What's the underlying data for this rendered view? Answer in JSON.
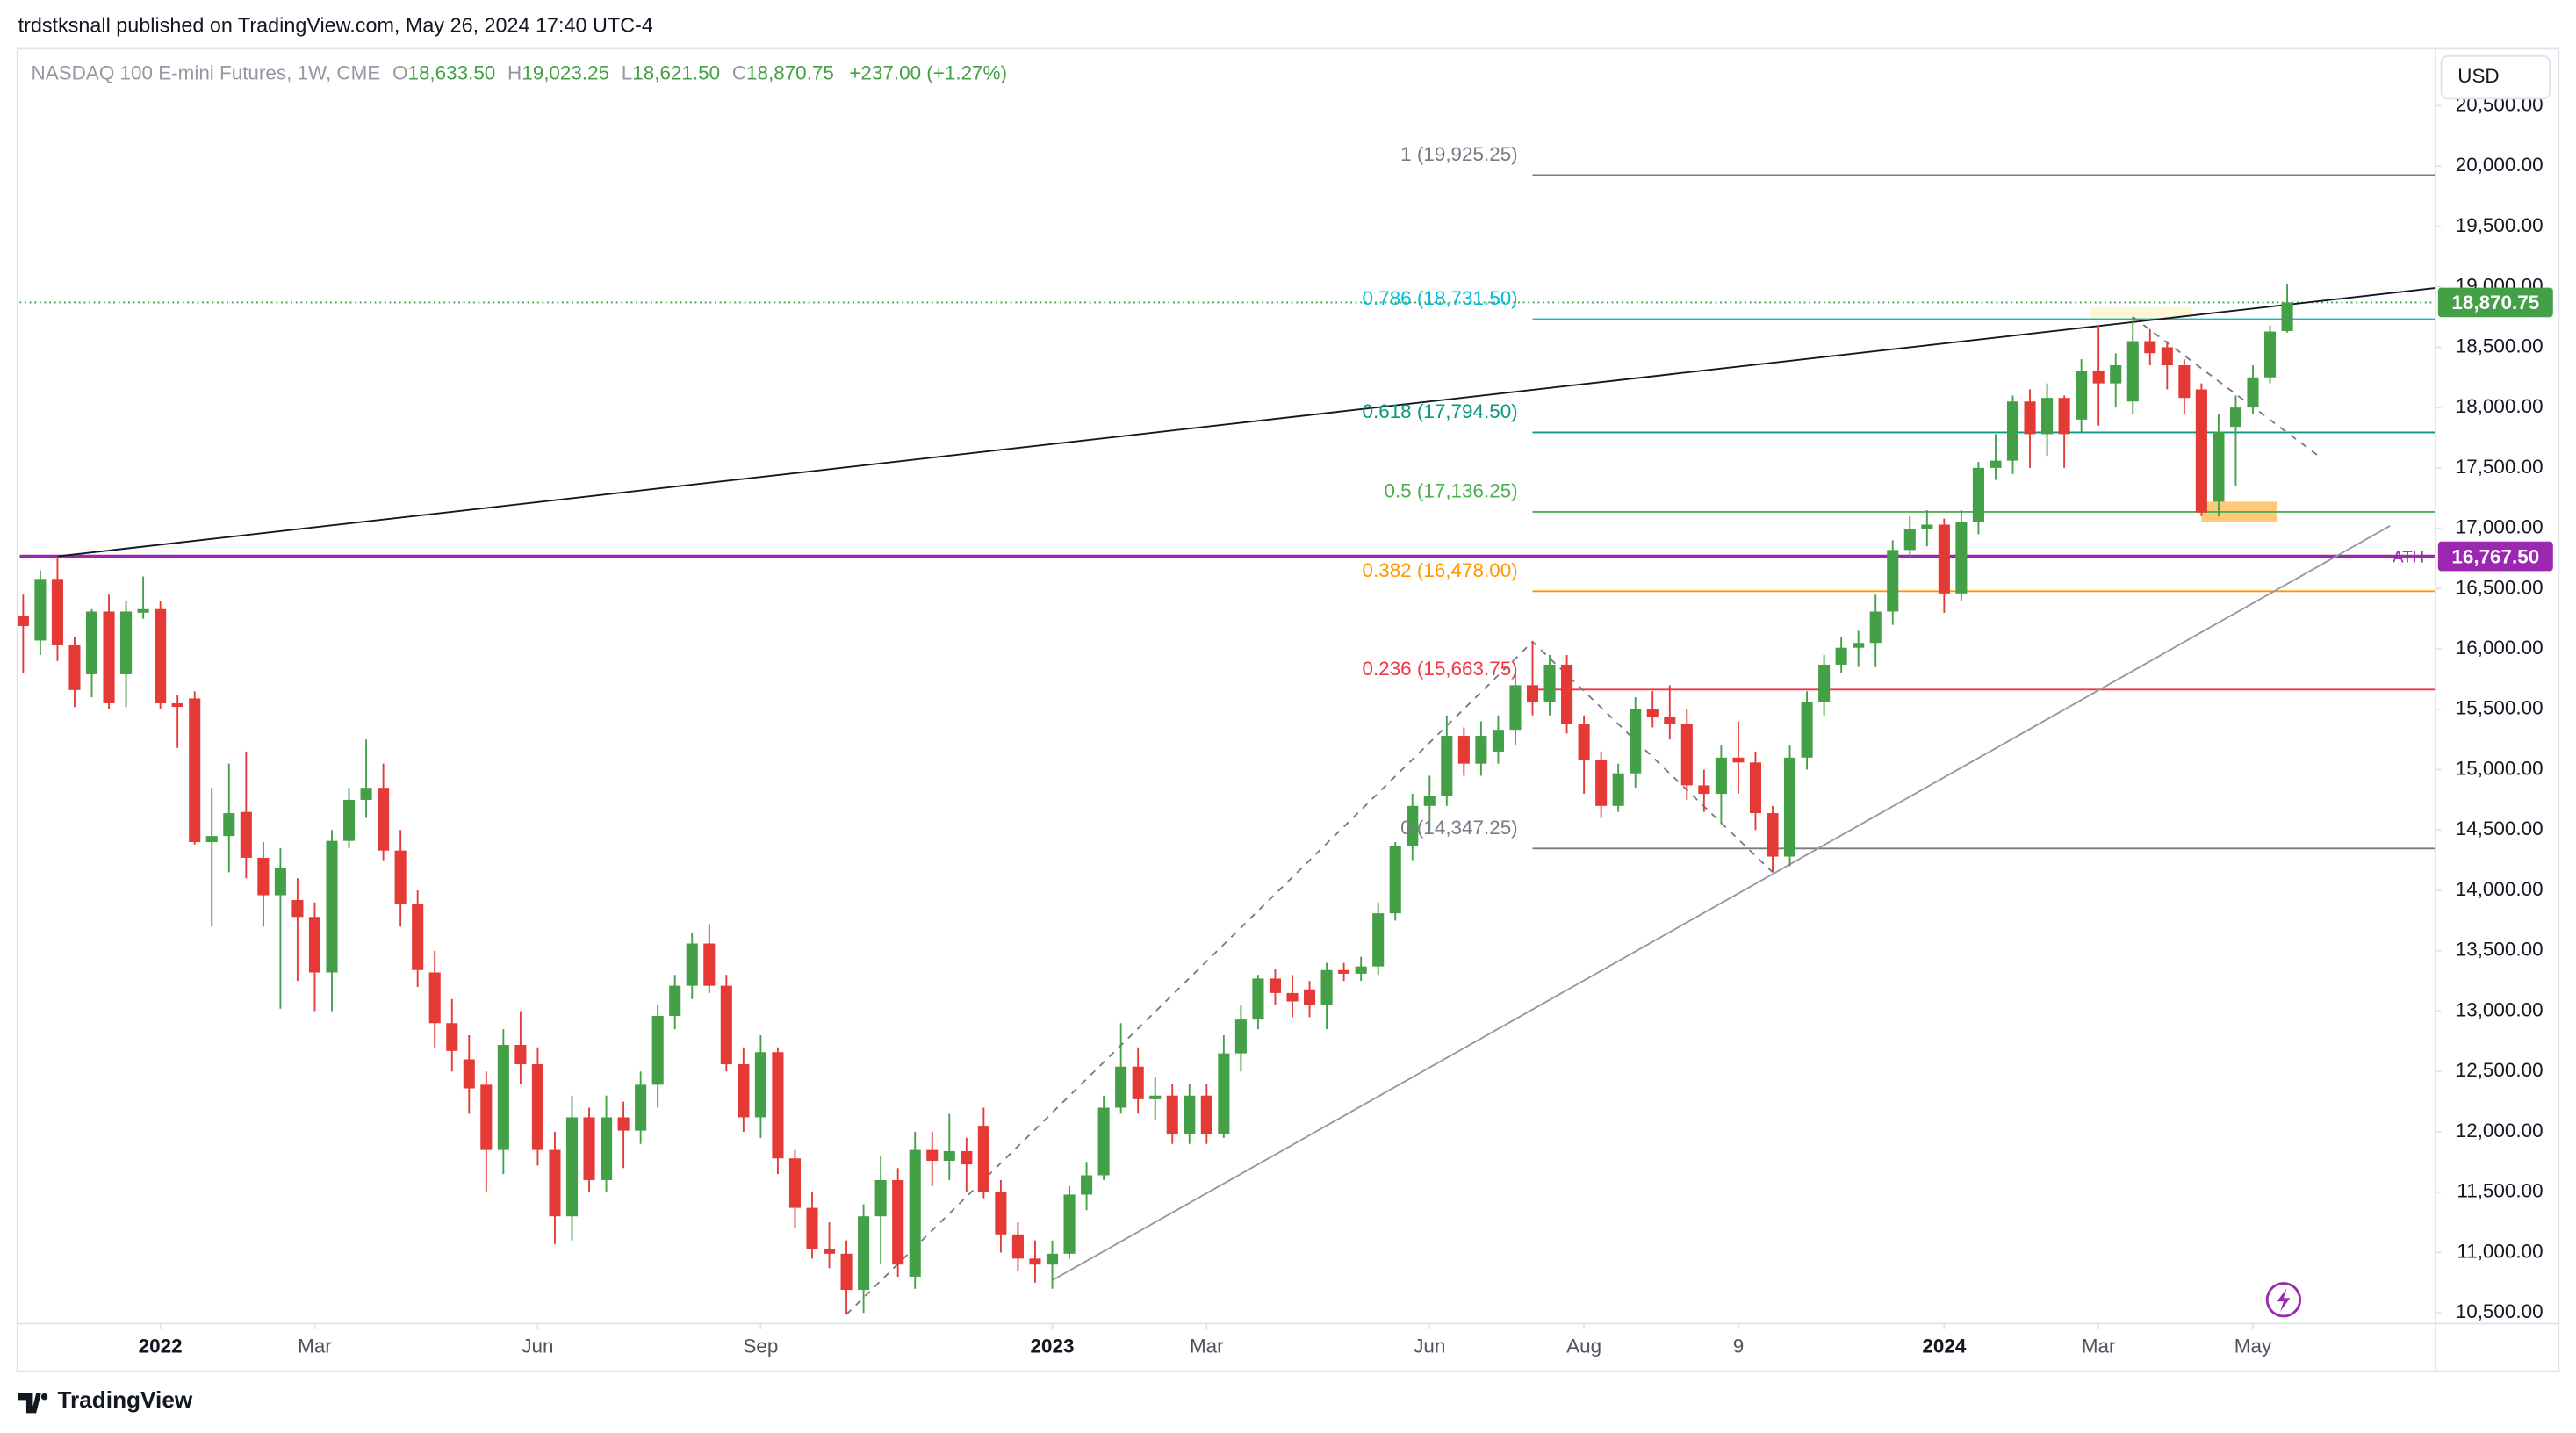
{
  "header": {
    "publisher": "trdstksnall published on TradingView.com, May 26, 2024 17:40 UTC-4",
    "currency": "USD",
    "brand": "TradingView"
  },
  "chart_data": {
    "type": "candlestick",
    "legend": {
      "symbol": "NASDAQ 100 E-mini Futures, 1W, CME",
      "open_label": "O",
      "open": "18,633.50",
      "high_label": "H",
      "high": "19,023.25",
      "low_label": "L",
      "low": "18,621.50",
      "close_label": "C",
      "close": "18,870.75",
      "change": "+237.00 (+1.27%)"
    },
    "up_color": "#43a047",
    "down_color": "#e53935",
    "candles": {
      "open": [
        16271,
        16070,
        16580,
        16030,
        15790,
        16310,
        15790,
        16300,
        16330,
        15550,
        15590,
        14400,
        14450,
        14650,
        14270,
        13960,
        13920,
        13780,
        13320,
        14410,
        14750,
        14850,
        14330,
        13890,
        13320,
        12900,
        12600,
        12390,
        11850,
        12720,
        12560,
        11850,
        11300,
        12120,
        11600,
        12120,
        12010,
        12390,
        12960,
        13210,
        13560,
        13210,
        12560,
        12120,
        12660,
        11780,
        11370,
        11030,
        10990,
        10690,
        11300,
        11600,
        10800,
        11850,
        11760,
        11840,
        12050,
        11500,
        11150,
        10950,
        10900,
        10990,
        11480,
        11640,
        12200,
        12540,
        12270,
        12300,
        11980,
        12300,
        11980,
        12650,
        12930,
        13270,
        13150,
        13180,
        13050,
        13340,
        13310,
        13370,
        13810,
        14370,
        14700,
        14780,
        15280,
        15050,
        15150,
        15330,
        15700,
        15560,
        15870,
        15380,
        15080,
        14700,
        14970,
        15500,
        15440,
        15380,
        14870,
        14800,
        15100,
        15060,
        14640,
        14280,
        15100,
        15560,
        15870,
        16010,
        16050,
        16310,
        16820,
        16990,
        17030,
        16460,
        17050,
        17500,
        17560,
        18050,
        17780,
        18080,
        17900,
        18300,
        18200,
        18050,
        18550,
        18500,
        18350,
        18150,
        17220,
        17840,
        18000,
        18250,
        18633.5
      ],
      "high": [
        16450,
        16650,
        16767.5,
        16100,
        16330,
        16450,
        16400,
        16600,
        16400,
        15620,
        15650,
        14850,
        15050,
        15150,
        14400,
        14350,
        14100,
        13900,
        14500,
        14850,
        15250,
        15050,
        14500,
        14000,
        13500,
        13100,
        12800,
        12500,
        12850,
        13000,
        12700,
        12000,
        12300,
        12200,
        12300,
        12250,
        12500,
        13050,
        13300,
        13650,
        13720,
        13300,
        12700,
        12800,
        12700,
        11850,
        11500,
        11250,
        11100,
        11400,
        11800,
        11700,
        12000,
        12000,
        12150,
        11950,
        12200,
        11600,
        11250,
        11100,
        11100,
        11550,
        11750,
        12300,
        12900,
        12700,
        12450,
        12400,
        12400,
        12400,
        12800,
        13050,
        13300,
        13350,
        13300,
        13250,
        13400,
        13400,
        13450,
        13900,
        14400,
        14800,
        14950,
        15450,
        15350,
        15400,
        15450,
        15800,
        16060,
        15950,
        15950,
        15450,
        15150,
        15050,
        15600,
        15650,
        15700,
        15500,
        15000,
        15200,
        15400,
        15150,
        14700,
        15200,
        15650,
        15950,
        16100,
        16150,
        16450,
        16900,
        17100,
        17150,
        17080,
        17150,
        17550,
        17780,
        18100,
        18150,
        18200,
        18100,
        18400,
        18680,
        18450,
        18750,
        18650,
        18550,
        18400,
        18200,
        17950,
        18100,
        18350,
        18680,
        19023.25
      ],
      "low": [
        15800,
        15950,
        15900,
        15520,
        15600,
        15500,
        15520,
        16250,
        15500,
        15180,
        14380,
        13700,
        14150,
        14100,
        13700,
        13020,
        13250,
        13000,
        13000,
        14350,
        14600,
        14250,
        13700,
        13200,
        12700,
        12500,
        12150,
        11500,
        11650,
        12400,
        11720,
        11070,
        11100,
        11500,
        11500,
        11700,
        11900,
        12200,
        12850,
        13100,
        13150,
        12500,
        12000,
        11950,
        11650,
        11200,
        10950,
        10870,
        10487,
        10500,
        10900,
        10800,
        10700,
        11550,
        11600,
        11500,
        11450,
        11000,
        10850,
        10750,
        10700,
        10950,
        11350,
        11600,
        12150,
        12150,
        12100,
        11900,
        11900,
        11900,
        11950,
        12500,
        12850,
        13050,
        12950,
        12950,
        12850,
        13250,
        13250,
        13300,
        13750,
        14250,
        14500,
        14700,
        14950,
        14950,
        15050,
        15200,
        15450,
        15450,
        15300,
        14800,
        14600,
        14650,
        14850,
        15350,
        15250,
        14750,
        14650,
        14550,
        14800,
        14500,
        14150,
        14200,
        15000,
        15450,
        15800,
        15850,
        15850,
        16200,
        16750,
        16850,
        16300,
        16400,
        16950,
        17400,
        17450,
        17500,
        17600,
        17500,
        17800,
        17850,
        18000,
        17950,
        18350,
        18150,
        17950,
        17100,
        17100,
        17350,
        17950,
        18200,
        18621.5
      ],
      "close": [
        16190,
        16580,
        16030,
        15660,
        16310,
        15550,
        16310,
        16330,
        15550,
        15520,
        14400,
        14450,
        14640,
        14270,
        13960,
        14190,
        13780,
        13320,
        14410,
        14750,
        14850,
        14330,
        13890,
        13340,
        12900,
        12670,
        12360,
        11850,
        12720,
        12560,
        11850,
        11300,
        12120,
        11600,
        12120,
        12010,
        12390,
        12960,
        13210,
        13560,
        13210,
        12560,
        12120,
        12660,
        11780,
        11370,
        11030,
        10990,
        10690,
        11300,
        11600,
        10900,
        11850,
        11760,
        11840,
        11730,
        11500,
        11150,
        10950,
        10900,
        10990,
        11480,
        11640,
        12200,
        12540,
        12270,
        12300,
        11980,
        12300,
        11980,
        12650,
        12930,
        13270,
        13150,
        13080,
        13050,
        13340,
        13310,
        13370,
        13810,
        14370,
        14700,
        14780,
        15280,
        15050,
        15280,
        15330,
        15700,
        15560,
        15870,
        15380,
        15080,
        14700,
        14970,
        15500,
        15440,
        15380,
        14870,
        14800,
        15100,
        15060,
        14640,
        14280,
        15100,
        15560,
        15870,
        16010,
        16050,
        16310,
        16820,
        16990,
        17030,
        16460,
        17050,
        17500,
        17560,
        18050,
        17780,
        18080,
        17780,
        18300,
        18200,
        18350,
        18550,
        18450,
        18350,
        18080,
        17130,
        17800,
        18000,
        18250,
        18630,
        18870.75
      ]
    },
    "xlim": [
      -0.2,
      140.6
    ],
    "xticks": [
      {
        "value": 8,
        "label": "2022"
      },
      {
        "value": 17,
        "label": "Mar"
      },
      {
        "value": 30,
        "label": "Jun"
      },
      {
        "value": 43,
        "label": "Sep"
      },
      {
        "value": 60,
        "label": "2023"
      },
      {
        "value": 69,
        "label": "Mar"
      },
      {
        "value": 82,
        "label": "Jun"
      },
      {
        "value": 91,
        "label": "Aug"
      },
      {
        "value": 100,
        "label": "9"
      },
      {
        "value": 112,
        "label": "2024"
      },
      {
        "value": 121,
        "label": "Mar"
      },
      {
        "value": 130,
        "label": "May"
      }
    ],
    "ylim": [
      10418,
      20953
    ],
    "yticks": [
      {
        "value": 10500,
        "label": "10,500.00"
      },
      {
        "value": 11000,
        "label": "11,000.00"
      },
      {
        "value": 11500,
        "label": "11,500.00"
      },
      {
        "value": 12000,
        "label": "12,000.00"
      },
      {
        "value": 12500,
        "label": "12,500.00"
      },
      {
        "value": 13000,
        "label": "13,000.00"
      },
      {
        "value": 13500,
        "label": "13,500.00"
      },
      {
        "value": 14000,
        "label": "14,000.00"
      },
      {
        "value": 14500,
        "label": "14,500.00"
      },
      {
        "value": 15000,
        "label": "15,000.00"
      },
      {
        "value": 15500,
        "label": "15,500.00"
      },
      {
        "value": 16000,
        "label": "16,000.00"
      },
      {
        "value": 16500,
        "label": "16,500.00"
      },
      {
        "value": 17000,
        "label": "17,000.00"
      },
      {
        "value": 17500,
        "label": "17,500.00"
      },
      {
        "value": 18000,
        "label": "18,000.00"
      },
      {
        "value": 18500,
        "label": "18,500.00"
      },
      {
        "value": 19000,
        "label": "19,000.00"
      },
      {
        "value": 19500,
        "label": "19,500.00"
      },
      {
        "value": 20000,
        "label": "20,000.00"
      },
      {
        "value": 20500,
        "label": "20,500.00"
      }
    ],
    "grid": false,
    "fib_levels": [
      {
        "label": "1 (19,925.25)",
        "value": 19925.25,
        "color": "#787b86"
      },
      {
        "label": "0.786 (18,731.50)",
        "value": 18731.5,
        "color": "#00bcd4"
      },
      {
        "label": "0.618 (17,794.50)",
        "value": 17794.5,
        "color": "#089981"
      },
      {
        "label": "0.5 (17,136.25)",
        "value": 17136.25,
        "color": "#4caf50"
      },
      {
        "label": "0.382 (16,478.00)",
        "value": 16478,
        "color": "#ff9800"
      },
      {
        "label": "0.236 (15,663.75)",
        "value": 15663.75,
        "color": "#f23645"
      },
      {
        "label": "0 (14,347.25)",
        "value": 14347.25,
        "color": "#787b86"
      }
    ],
    "fib_start": 88,
    "ath": {
      "label": "ATH",
      "value": 16767.5,
      "price_label": "16,767.50",
      "color": "#9c27b0"
    },
    "last_price": {
      "value": 18870.75,
      "price_label": "18,870.75",
      "color": "#43a047"
    },
    "trend_lines": [
      {
        "from": [
          2,
          16767.5
        ],
        "to": [
          140.6,
          18990
        ],
        "color": "#131722"
      },
      {
        "from": [
          60,
          10770
        ],
        "to": [
          138,
          17020
        ],
        "color": "#9598a1"
      }
    ],
    "dashed_lines": [
      {
        "points": [
          [
            48,
            10487
          ],
          [
            88,
            16060
          ],
          [
            102,
            14150
          ]
        ]
      },
      {
        "points": [
          [
            123,
            18750
          ],
          [
            134,
            17580
          ]
        ]
      }
    ],
    "zones": [
      {
        "x": [
          127,
          131.4
        ],
        "y": [
          17050,
          17220
        ],
        "color": "#ffb74d"
      },
      {
        "x": [
          120.5,
          126.5
        ],
        "y": [
          18720,
          18830
        ],
        "color": "#fff3c4"
      }
    ]
  }
}
